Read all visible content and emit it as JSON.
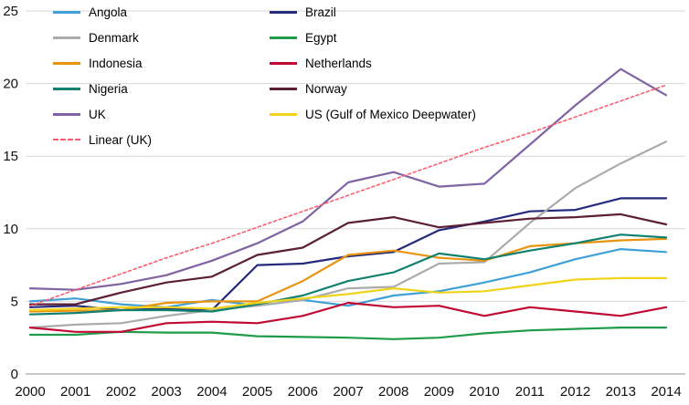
{
  "chart_data": {
    "type": "line",
    "title": "",
    "xlabel": "",
    "ylabel": "",
    "x": [
      2000,
      2001,
      2002,
      2003,
      2004,
      2005,
      2006,
      2007,
      2008,
      2009,
      2010,
      2011,
      2012,
      2013,
      2014
    ],
    "ylim": [
      0,
      25
    ],
    "y_ticks": [
      0,
      5,
      10,
      15,
      20,
      25
    ],
    "grid": true,
    "legend_position": "top-left",
    "series": [
      {
        "name": "Angola",
        "color": "#3FA0D8",
        "dashed": false,
        "values": [
          5.0,
          5.2,
          4.8,
          4.6,
          5.1,
          4.7,
          5.1,
          4.7,
          5.4,
          5.7,
          6.3,
          7.0,
          7.9,
          8.6,
          8.4
        ]
      },
      {
        "name": "Brazil",
        "color": "#252A7D",
        "dashed": false,
        "values": [
          4.6,
          4.7,
          4.4,
          4.5,
          4.4,
          7.5,
          7.6,
          8.1,
          8.4,
          9.9,
          10.5,
          11.2,
          11.3,
          12.1,
          12.1
        ]
      },
      {
        "name": "Denmark",
        "color": "#ABABAB",
        "dashed": false,
        "values": [
          3.2,
          3.4,
          3.5,
          4.0,
          4.4,
          4.7,
          5.1,
          5.9,
          6.0,
          7.6,
          7.7,
          10.4,
          12.8,
          14.5,
          16.0
        ]
      },
      {
        "name": "Egypt",
        "color": "#1E9C49",
        "dashed": false,
        "values": [
          2.7,
          2.7,
          2.9,
          2.85,
          2.85,
          2.6,
          2.55,
          2.5,
          2.4,
          2.5,
          2.8,
          3.0,
          3.1,
          3.2,
          3.2
        ]
      },
      {
        "name": "Indonesia",
        "color": "#E8940F",
        "dashed": false,
        "values": [
          4.3,
          4.35,
          4.4,
          4.9,
          5.0,
          5.0,
          6.4,
          8.2,
          8.5,
          8.0,
          7.8,
          8.8,
          9.0,
          9.2,
          9.3
        ]
      },
      {
        "name": "Netherlands",
        "color": "#C00A33",
        "dashed": false,
        "values": [
          3.2,
          2.9,
          2.9,
          3.5,
          3.6,
          3.5,
          4.0,
          4.9,
          4.6,
          4.7,
          4.0,
          4.6,
          4.3,
          4.0,
          4.6
        ]
      },
      {
        "name": "Nigeria",
        "color": "#12806E",
        "dashed": false,
        "values": [
          4.1,
          4.2,
          4.4,
          4.4,
          4.3,
          4.8,
          5.4,
          6.4,
          7.0,
          8.3,
          7.9,
          8.5,
          9.0,
          9.6,
          9.4
        ]
      },
      {
        "name": "Norway",
        "color": "#5C1F33",
        "dashed": false,
        "values": [
          4.8,
          4.8,
          5.6,
          6.3,
          6.7,
          8.2,
          8.7,
          10.4,
          10.8,
          10.1,
          10.4,
          10.7,
          10.8,
          11.0,
          10.3
        ]
      },
      {
        "name": "UK",
        "color": "#7F63A2",
        "dashed": false,
        "values": [
          5.9,
          5.8,
          6.2,
          6.8,
          7.8,
          9.0,
          10.5,
          13.2,
          13.9,
          12.9,
          13.1,
          15.8,
          18.5,
          21.0,
          19.2
        ]
      },
      {
        "name": "US (Gulf of Mexico Deepwater)",
        "color": "#F0D31A",
        "dashed": false,
        "values": [
          4.4,
          4.5,
          4.6,
          4.6,
          4.5,
          4.9,
          5.2,
          5.5,
          5.9,
          5.6,
          5.7,
          6.1,
          6.5,
          6.6,
          6.6
        ]
      },
      {
        "name": "Linear (UK)",
        "color": "#FC5D6F",
        "dashed": true,
        "values": [
          4.7,
          5.8,
          6.9,
          8.0,
          9.0,
          10.1,
          11.2,
          12.3,
          13.4,
          14.5,
          15.6,
          16.6,
          17.7,
          18.8,
          19.9
        ]
      }
    ],
    "colors": {
      "gridline": "#D9D9D9",
      "axis_line": "#A6A6A6",
      "label_text": "#111111",
      "background": "#FFFFFF"
    }
  }
}
